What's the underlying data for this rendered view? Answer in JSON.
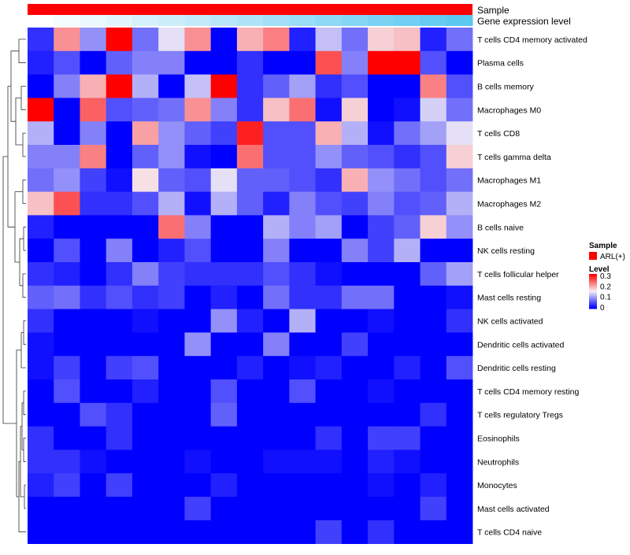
{
  "chart_data": {
    "type": "heatmap",
    "title": "",
    "annotation_tracks": [
      {
        "label": "Sample",
        "value": "ARL(+)",
        "color": "#ff0000"
      },
      {
        "label": "Gene expression level",
        "gradient": [
          "#ffffff",
          "#5bc8f0"
        ]
      }
    ],
    "rows": [
      "T cells CD4 memory activated",
      "Plasma cells",
      "B cells memory",
      "Macrophages M0",
      "T cells CD8",
      "T cells gamma delta",
      "Macrophages M1",
      "Macrophages M2",
      "B cells naive",
      "NK cells resting",
      "T cells follicular helper",
      "Mast cells resting",
      "NK cells activated",
      "Dendritic cells activated",
      "Dendritic cells resting",
      "T cells CD4 memory resting",
      "T cells regulatory  Tregs",
      "Eosinophils",
      "Neutrophils",
      "Monocytes",
      "Mast cells activated",
      "T cells CD4 naive"
    ],
    "n_columns": 17,
    "values": [
      [
        0.03,
        0.21,
        0.09,
        0.3,
        0.07,
        0.14,
        0.21,
        0.0,
        0.19,
        0.22,
        0.02,
        0.12,
        0.07,
        0.17,
        0.18,
        0.02,
        0.07
      ],
      [
        0.02,
        0.05,
        0.0,
        0.06,
        0.08,
        0.08,
        0.0,
        0.0,
        0.03,
        0.0,
        0.0,
        0.25,
        0.08,
        0.3,
        0.3,
        0.05,
        0.0
      ],
      [
        0.0,
        0.08,
        0.19,
        0.3,
        0.11,
        0.0,
        0.12,
        0.3,
        0.03,
        0.06,
        0.1,
        0.03,
        0.05,
        0.0,
        0.0,
        0.22,
        0.05
      ],
      [
        0.3,
        0.0,
        0.24,
        0.05,
        0.06,
        0.07,
        0.21,
        0.08,
        0.03,
        0.18,
        0.23,
        0.01,
        0.17,
        0.0,
        0.01,
        0.13,
        0.07
      ],
      [
        0.11,
        0.0,
        0.08,
        0.0,
        0.2,
        0.09,
        0.06,
        0.04,
        0.28,
        0.05,
        0.05,
        0.19,
        0.11,
        0.01,
        0.07,
        0.1,
        0.14
      ],
      [
        0.08,
        0.08,
        0.22,
        0.0,
        0.06,
        0.09,
        0.01,
        0.0,
        0.23,
        0.05,
        0.05,
        0.09,
        0.06,
        0.05,
        0.03,
        0.05,
        0.17
      ],
      [
        0.07,
        0.09,
        0.04,
        0.01,
        0.16,
        0.06,
        0.05,
        0.14,
        0.06,
        0.06,
        0.05,
        0.03,
        0.19,
        0.09,
        0.07,
        0.05,
        0.07
      ],
      [
        0.18,
        0.25,
        0.03,
        0.03,
        0.05,
        0.11,
        0.01,
        0.11,
        0.06,
        0.02,
        0.08,
        0.05,
        0.04,
        0.08,
        0.05,
        0.06,
        0.11
      ],
      [
        0.02,
        0.0,
        0.0,
        0.0,
        0.0,
        0.23,
        0.08,
        0.0,
        0.0,
        0.11,
        0.08,
        0.1,
        0.0,
        0.04,
        0.06,
        0.17,
        0.09
      ],
      [
        0.0,
        0.05,
        0.0,
        0.08,
        0.0,
        0.02,
        0.05,
        0.0,
        0.0,
        0.08,
        0.0,
        0.0,
        0.08,
        0.04,
        0.11,
        0.0,
        0.0
      ],
      [
        0.03,
        0.02,
        0.0,
        0.03,
        0.08,
        0.04,
        0.03,
        0.03,
        0.03,
        0.05,
        0.03,
        0.01,
        0.0,
        0.0,
        0.0,
        0.06,
        0.1
      ],
      [
        0.06,
        0.07,
        0.03,
        0.05,
        0.03,
        0.04,
        0.0,
        0.02,
        0.0,
        0.07,
        0.03,
        0.03,
        0.07,
        0.07,
        0.0,
        0.0,
        0.01
      ],
      [
        0.03,
        0.0,
        0.0,
        0.0,
        0.01,
        0.0,
        0.0,
        0.09,
        0.02,
        0.0,
        0.11,
        0.0,
        0.0,
        0.01,
        0.0,
        0.0,
        0.03
      ],
      [
        0.01,
        0.0,
        0.0,
        0.0,
        0.0,
        0.0,
        0.09,
        0.0,
        0.0,
        0.08,
        0.0,
        0.0,
        0.04,
        0.0,
        0.0,
        0.0,
        0.0
      ],
      [
        0.01,
        0.04,
        0.0,
        0.04,
        0.05,
        0.0,
        0.0,
        0.0,
        0.02,
        0.0,
        0.01,
        0.02,
        0.0,
        0.0,
        0.02,
        0.0,
        0.05
      ],
      [
        0.0,
        0.05,
        0.0,
        0.0,
        0.02,
        0.0,
        0.0,
        0.05,
        0.0,
        0.0,
        0.05,
        0.0,
        0.0,
        0.01,
        0.0,
        0.0,
        0.0
      ],
      [
        0.0,
        0.0,
        0.05,
        0.03,
        0.0,
        0.0,
        0.0,
        0.06,
        0.0,
        0.0,
        0.0,
        0.0,
        0.0,
        0.0,
        0.0,
        0.03,
        0.0
      ],
      [
        0.03,
        0.0,
        0.0,
        0.03,
        0.0,
        0.0,
        0.0,
        0.0,
        0.0,
        0.0,
        0.0,
        0.03,
        0.0,
        0.04,
        0.04,
        0.0,
        0.0
      ],
      [
        0.03,
        0.03,
        0.01,
        0.0,
        0.0,
        0.0,
        0.01,
        0.0,
        0.0,
        0.01,
        0.01,
        0.01,
        0.0,
        0.02,
        0.01,
        0.0,
        0.0
      ],
      [
        0.02,
        0.04,
        0.0,
        0.04,
        0.0,
        0.0,
        0.0,
        0.02,
        0.0,
        0.0,
        0.0,
        0.0,
        0.0,
        0.01,
        0.0,
        0.02,
        0.0
      ],
      [
        0.0,
        0.0,
        0.0,
        0.0,
        0.0,
        0.0,
        0.04,
        0.0,
        0.0,
        0.0,
        0.0,
        0.0,
        0.0,
        0.0,
        0.0,
        0.04,
        0.0
      ],
      [
        0.0,
        0.0,
        0.0,
        0.0,
        0.0,
        0.0,
        0.0,
        0.0,
        0.0,
        0.0,
        0.0,
        0.04,
        0.0,
        0.03,
        0.0,
        0.0,
        0.0
      ]
    ],
    "color_scale": {
      "min": 0,
      "max": 0.3,
      "stops": [
        {
          "value": 0,
          "color": "#0000ff"
        },
        {
          "value": 0.15,
          "color": "#f5f0f5"
        },
        {
          "value": 0.3,
          "color": "#ff0000"
        }
      ]
    },
    "legend": {
      "sample_title": "Sample",
      "sample_entry": "ARL(+)",
      "level_title": "Level",
      "ticks": [
        "0.3",
        "0.2",
        "0.1",
        "0"
      ],
      "position": "right"
    },
    "row_dendrogram": true,
    "column_dendrogram": false
  }
}
